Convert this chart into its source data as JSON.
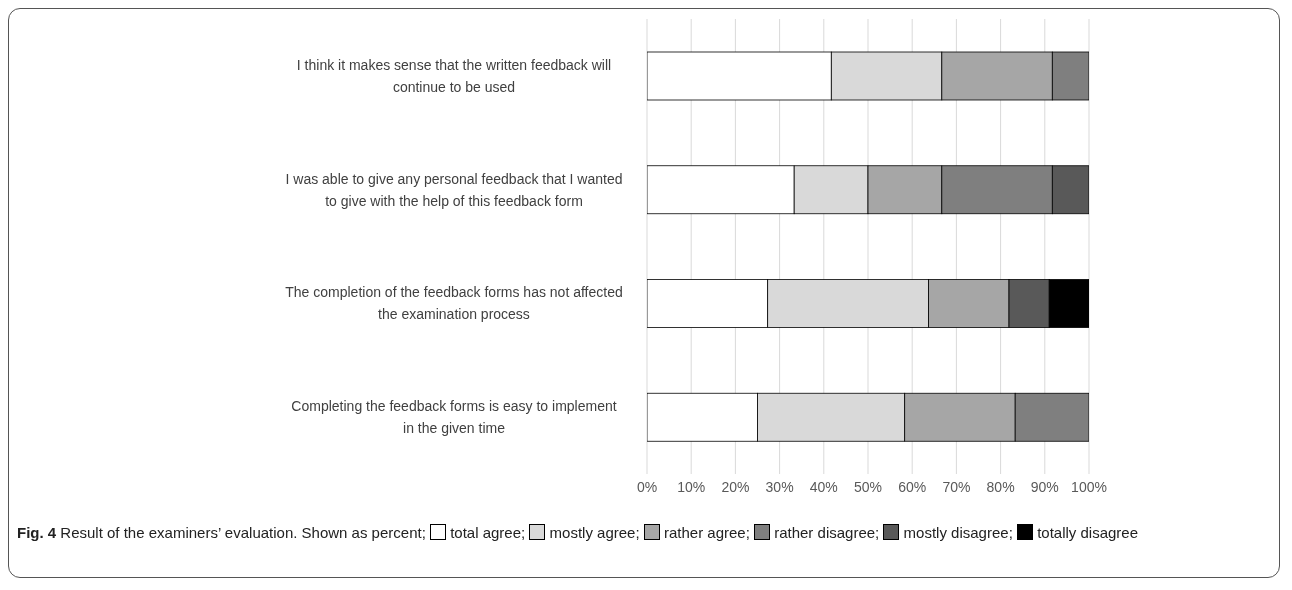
{
  "chart_data": {
    "type": "bar",
    "orientation": "horizontal",
    "stacked": true,
    "title": "Fig. 4",
    "subtitle": "Result of the examiners’ evaluation. Shown as percent;",
    "categories": [
      "I think it makes sense that the written feedback will continue to be used",
      "I was able to give any personal feedback that I wanted to give with the help of this feedback form",
      "The completion of the feedback forms has not affected the examination process",
      "Completing the feedback forms is easy to implement in the given time"
    ],
    "series": [
      {
        "name": "total agree;",
        "color": "#ffffff",
        "values": [
          41.7,
          33.3,
          27.3,
          25
        ]
      },
      {
        "name": "mostly agree;",
        "color": "#d9d9d9",
        "values": [
          25,
          16.7,
          36.4,
          33.3
        ]
      },
      {
        "name": "rather agree;",
        "color": "#a6a6a6",
        "values": [
          25,
          16.7,
          18.2,
          25
        ]
      },
      {
        "name": "rather disagree;",
        "color": "#7f7f7f",
        "values": [
          8.3,
          25,
          0,
          16.7
        ]
      },
      {
        "name": "mostly disagree;",
        "color": "#595959",
        "values": [
          0,
          8.3,
          9.1,
          0
        ]
      },
      {
        "name": "totally disagree",
        "color": "#000000",
        "values": [
          0,
          0,
          9.1,
          0
        ]
      }
    ],
    "xlim": [
      0,
      100
    ],
    "xticks": [
      {
        "value": 0,
        "label": "0%"
      },
      {
        "value": 10,
        "label": "10%"
      },
      {
        "value": 20,
        "label": "20%"
      },
      {
        "value": 30,
        "label": "30%"
      },
      {
        "value": 40,
        "label": "40%"
      },
      {
        "value": 50,
        "label": "50%"
      },
      {
        "value": 60,
        "label": "60%"
      },
      {
        "value": 70,
        "label": "70%"
      },
      {
        "value": 80,
        "label": "80%"
      },
      {
        "value": 90,
        "label": "90%"
      },
      {
        "value": 100,
        "label": "100%"
      }
    ],
    "grid": "x",
    "legend": "bottom"
  }
}
